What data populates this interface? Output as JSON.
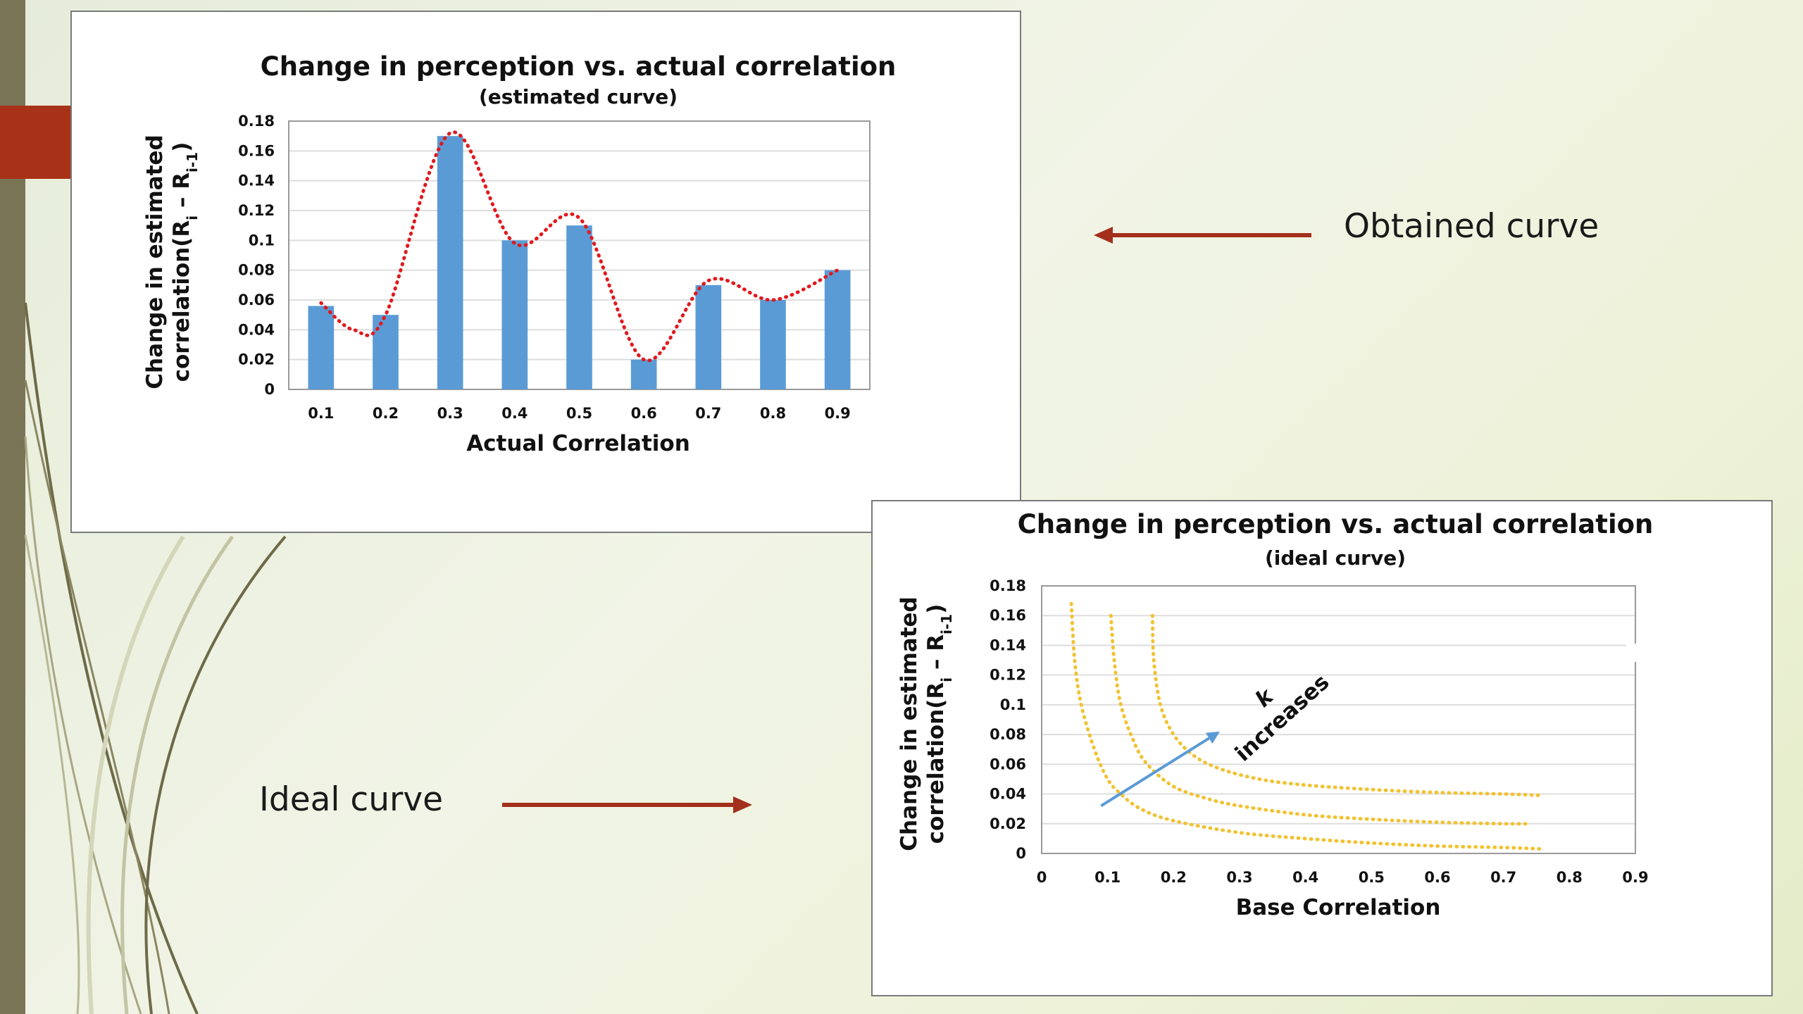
{
  "labels": {
    "obtained": "Obtained curve",
    "ideal": "Ideal curve"
  },
  "colors": {
    "sidebar": "#7a7456",
    "accent_block": "#a83217",
    "arrow": "#a3301c",
    "bar": "#5b9bd5",
    "estimated_curve": "#e0191e",
    "ideal_curves": "#f1c232",
    "k_arrow": "#5b9bd5"
  },
  "chart_data": [
    {
      "type": "bar",
      "title": "Change in perception vs. actual  correlation",
      "subtitle": "(estimated curve)",
      "xlabel": "Actual Correlation",
      "ylabel_line1": "Change in estimated",
      "ylabel_line2": "correlation(R",
      "ylabel_sub1": "i",
      "ylabel_mid": " – R",
      "ylabel_sub2": "i-1",
      "ylabel_end": ")",
      "categories": [
        "0.1",
        "0.2",
        "0.3",
        "0.4",
        "0.5",
        "0.6",
        "0.7",
        "0.8",
        "0.9"
      ],
      "values": [
        0.056,
        0.05,
        0.17,
        0.1,
        0.11,
        0.02,
        0.07,
        0.06,
        0.08
      ],
      "ylim": [
        0,
        0.18
      ],
      "yticks": [
        "0",
        "0.02",
        "0.04",
        "0.06",
        "0.08",
        "0.1",
        "0.12",
        "0.14",
        "0.16",
        "0.18"
      ],
      "smooth_line": {
        "style": "dotted",
        "points": [
          [
            1,
            0.058
          ],
          [
            1.5,
            0.04
          ],
          [
            2,
            0.05
          ],
          [
            3,
            0.172
          ],
          [
            4,
            0.098
          ],
          [
            5,
            0.115
          ],
          [
            6,
            0.02
          ],
          [
            7,
            0.073
          ],
          [
            8,
            0.06
          ],
          [
            9,
            0.08
          ]
        ]
      },
      "grid": true
    },
    {
      "type": "line",
      "title": "Change in perception vs. actual  correlation",
      "subtitle": "(ideal curve)",
      "xlabel": "Base Correlation",
      "ylabel_line1": "Change in estimated",
      "ylabel_line2": "correlation(R",
      "ylabel_sub1": "i",
      "ylabel_mid": " – R",
      "ylabel_sub2": "i-1",
      "ylabel_end": ")",
      "xlim": [
        0,
        0.9
      ],
      "ylim": [
        0,
        0.18
      ],
      "xticks": [
        "0",
        "0.1",
        "0.2",
        "0.3",
        "0.4",
        "0.5",
        "0.6",
        "0.7",
        "0.8",
        "0.9"
      ],
      "yticks": [
        "0",
        "0.02",
        "0.04",
        "0.06",
        "0.08",
        "0.1",
        "0.12",
        "0.14",
        "0.16",
        "0.18"
      ],
      "series": [
        {
          "style": "dotted",
          "x": [
            0.045,
            0.05,
            0.06,
            0.08,
            0.1,
            0.12,
            0.15,
            0.2,
            0.3,
            0.4,
            0.5,
            0.6,
            0.7,
            0.76
          ],
          "y": [
            0.168,
            0.13,
            0.1,
            0.07,
            0.05,
            0.04,
            0.03,
            0.022,
            0.014,
            0.01,
            0.007,
            0.005,
            0.004,
            0.003
          ]
        },
        {
          "style": "dotted",
          "x": [
            0.105,
            0.11,
            0.12,
            0.14,
            0.16,
            0.2,
            0.25,
            0.3,
            0.4,
            0.5,
            0.6,
            0.7,
            0.74
          ],
          "y": [
            0.16,
            0.13,
            0.1,
            0.075,
            0.06,
            0.045,
            0.037,
            0.032,
            0.026,
            0.023,
            0.021,
            0.02,
            0.02
          ]
        },
        {
          "style": "dotted",
          "x": [
            0.168,
            0.17,
            0.18,
            0.2,
            0.23,
            0.27,
            0.33,
            0.4,
            0.5,
            0.6,
            0.7,
            0.76
          ],
          "y": [
            0.16,
            0.13,
            0.1,
            0.08,
            0.066,
            0.057,
            0.05,
            0.046,
            0.043,
            0.041,
            0.04,
            0.039
          ]
        }
      ],
      "annotation": {
        "line1": "k",
        "line2": "increases",
        "arrow_from": [
          0.09,
          0.032
        ],
        "arrow_to": [
          0.27,
          0.082
        ]
      },
      "grid": true
    }
  ]
}
